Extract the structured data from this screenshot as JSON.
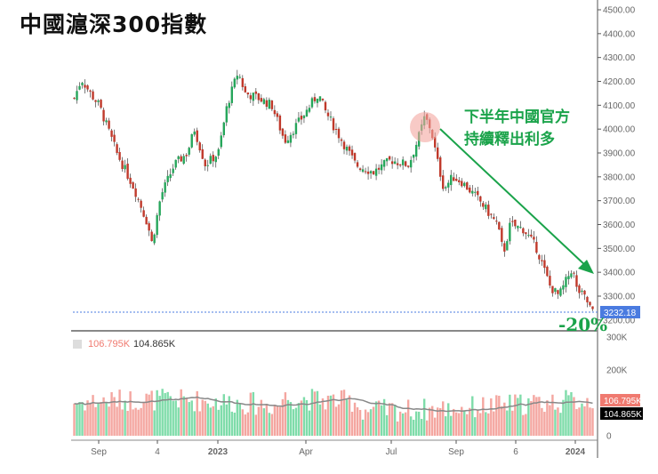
{
  "title": "中國滬深300指數",
  "annotation": [
    "下半年中國官方",
    "持續釋出利多"
  ],
  "change_label": "-20%",
  "legend": {
    "vol": "106.795K",
    "vol_ma": "104.865K"
  },
  "colors": {
    "up": "#26a65b",
    "down": "#c0392b",
    "vol_up": "#7fdcaa",
    "vol_down": "#f4a6a0",
    "arrow": "#1aa34a",
    "last_price_bg": "#4a7be0"
  },
  "chart_data": {
    "type": "candlestick",
    "title": "中國滬深300指數",
    "price_axis": {
      "ticks": [
        "4500.00",
        "4400.00",
        "4300.00",
        "4200.00",
        "4100.00",
        "4000.00",
        "3900.00",
        "3800.00",
        "3700.00",
        "3600.00",
        "3500.00",
        "3400.00",
        "3300.00",
        "3200.00"
      ],
      "range": [
        3200,
        4500
      ]
    },
    "last_price": "3232.18",
    "volume_axis": {
      "ticks": [
        "300K",
        "200K",
        "0"
      ],
      "range": [
        0,
        300000
      ]
    },
    "vol_last": "106.795K",
    "vol_ma_last": "104.865K",
    "x_ticks": [
      "Sep",
      "4",
      "2023",
      "Apr",
      "Jul",
      "Sep",
      "6",
      "2024"
    ],
    "price_path": [
      [
        0,
        4130
      ],
      [
        1.4,
        4210
      ],
      [
        3.1,
        4150
      ],
      [
        4.8,
        4100
      ],
      [
        8.2,
        3900
      ],
      [
        11.6,
        3750
      ],
      [
        14.2,
        3600
      ],
      [
        15,
        3520
      ],
      [
        16.7,
        3720
      ],
      [
        19.3,
        3850
      ],
      [
        21.8,
        3900
      ],
      [
        23.2,
        4000
      ],
      [
        25.3,
        3850
      ],
      [
        27.8,
        3900
      ],
      [
        29.5,
        4100
      ],
      [
        31.6,
        4240
      ],
      [
        33,
        4150
      ],
      [
        35.5,
        4130
      ],
      [
        38.1,
        4100
      ],
      [
        40.6,
        3950
      ],
      [
        44,
        4050
      ],
      [
        47.1,
        4150
      ],
      [
        48.3,
        4080
      ],
      [
        50.9,
        3980
      ],
      [
        54.3,
        3850
      ],
      [
        57.7,
        3820
      ],
      [
        61.1,
        3870
      ],
      [
        64.5,
        3850
      ],
      [
        66.2,
        3950
      ],
      [
        67.6,
        4050
      ],
      [
        68.8,
        4000
      ],
      [
        70,
        3870
      ],
      [
        71.3,
        3750
      ],
      [
        73,
        3800
      ],
      [
        74.7,
        3780
      ],
      [
        78.2,
        3700
      ],
      [
        81.6,
        3600
      ],
      [
        82.8,
        3480
      ],
      [
        84.1,
        3600
      ],
      [
        86.7,
        3580
      ],
      [
        89.2,
        3500
      ],
      [
        91.8,
        3340
      ],
      [
        93.5,
        3300
      ],
      [
        96.1,
        3420
      ],
      [
        96.9,
        3330
      ],
      [
        98.6,
        3290
      ],
      [
        100,
        3232
      ]
    ]
  }
}
